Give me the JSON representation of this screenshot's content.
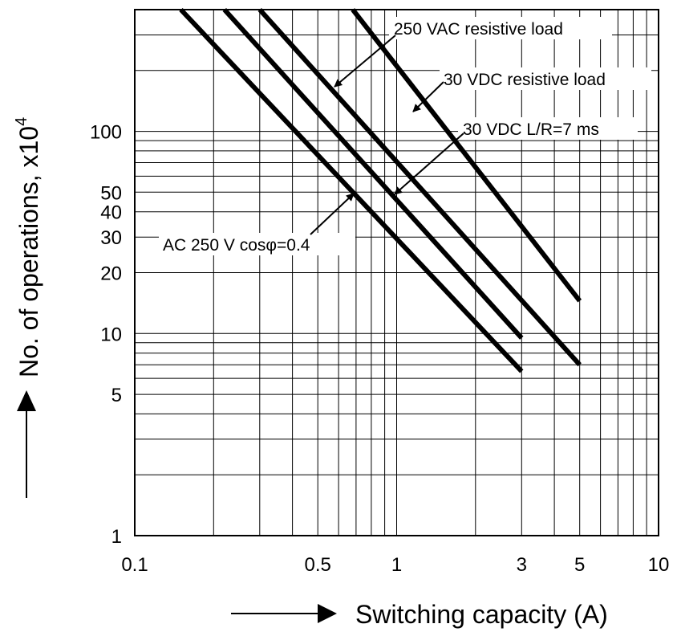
{
  "chart_data": {
    "type": "line",
    "x_scale": "log",
    "y_scale": "log",
    "xlim": [
      0.1,
      10
    ],
    "ylim": [
      1,
      400
    ],
    "grid": true,
    "xlabel": "Switching capacity (A)",
    "ylabel": "No. of operations, x10",
    "ylabel_superscript": "4",
    "x_ticks": [
      {
        "value": 0.1,
        "label": "0.1"
      },
      {
        "value": 0.5,
        "label": "0.5"
      },
      {
        "value": 1,
        "label": "1"
      },
      {
        "value": 3,
        "label": "3"
      },
      {
        "value": 5,
        "label": "5"
      },
      {
        "value": 10,
        "label": "10"
      }
    ],
    "y_ticks": [
      {
        "value": 1,
        "label": "1"
      },
      {
        "value": 5,
        "label": "5"
      },
      {
        "value": 10,
        "label": "10"
      },
      {
        "value": 20,
        "label": "20"
      },
      {
        "value": 30,
        "label": "30"
      },
      {
        "value": 40,
        "label": "40"
      },
      {
        "value": 50,
        "label": "50"
      },
      {
        "value": 100,
        "label": "100"
      }
    ],
    "x_grid": [
      0.2,
      0.3,
      0.4,
      0.5,
      0.6,
      0.7,
      0.8,
      0.9,
      1,
      2,
      3,
      4,
      5,
      6,
      7,
      8,
      9
    ],
    "y_grid": [
      2,
      3,
      4,
      5,
      6,
      7,
      8,
      9,
      10,
      20,
      30,
      40,
      50,
      60,
      70,
      80,
      90,
      100,
      200,
      300
    ],
    "series": [
      {
        "name": "250 VAC resistive load",
        "x": [
          0.68,
          5
        ],
        "y": [
          400,
          14.5
        ]
      },
      {
        "name": "30 VDC resistive load",
        "x": [
          0.3,
          5
        ],
        "y": [
          400,
          7
        ]
      },
      {
        "name": "30 VDC L/R=7 ms",
        "x": [
          0.22,
          3
        ],
        "y": [
          400,
          9.5
        ]
      },
      {
        "name": "AC 250 V cosφ=0.4",
        "x": [
          0.15,
          3
        ],
        "y": [
          400,
          6.5
        ]
      }
    ],
    "annotations": [
      {
        "text": "250 VAC resistive load",
        "series": 2
      },
      {
        "text": "30 VDC resistive load",
        "series": 0
      },
      {
        "text": "30 VDC L/R=7 ms",
        "series": 1
      },
      {
        "text": "AC 250 V cosφ=0.4",
        "series": 3
      }
    ]
  }
}
